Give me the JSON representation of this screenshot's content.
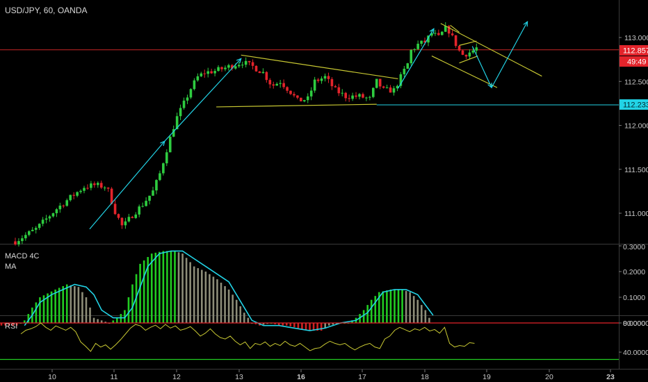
{
  "header": {
    "symbol_label": "USD/JPY, 60, OANDA"
  },
  "colors": {
    "background": "#000000",
    "up": "#2ecc40",
    "down": "#e3242b",
    "cyan": "#22d3e6",
    "yellow": "#c8c832",
    "resistance": "#b22222",
    "axis_text": "#c8c8c8",
    "price_tag": "#e3242b",
    "support_tag": "#22d3e6",
    "macd_green": "#22cc22",
    "macd_grey": "#8c8c78",
    "macd_red": "#cc2222",
    "rsi_line": "#c8c832",
    "rsi_upper": "#e3242b",
    "rsi_lower": "#22cc22"
  },
  "price_tags": {
    "last_price": "112.857",
    "countdown": "49:49",
    "support": "112.233"
  },
  "chart_data": [
    {
      "type": "candlestick",
      "title": "USD/JPY, 60, OANDA",
      "x_ticks": [
        "10",
        "11",
        "12",
        "13",
        "16",
        "17",
        "18",
        "19",
        "20",
        "23"
      ],
      "y_ticks": [
        "111.000",
        "111.500",
        "112.000",
        "112.500",
        "113.000"
      ],
      "ylim": [
        110.6,
        113.3
      ],
      "horizontal_levels": {
        "resistance": 112.86,
        "support": 112.233
      },
      "path": [
        [
          0,
          110.68
        ],
        [
          3,
          110.82
        ],
        [
          6,
          111.05
        ],
        [
          8,
          111.18
        ],
        [
          10,
          111.3
        ],
        [
          11.5,
          111.32
        ],
        [
          13.3,
          111.3
        ],
        [
          14.5,
          111.02
        ],
        [
          15.6,
          110.84
        ],
        [
          17,
          110.98
        ],
        [
          18.5,
          111.1
        ],
        [
          20,
          111.25
        ],
        [
          21,
          111.45
        ],
        [
          22.2,
          111.78
        ],
        [
          23.3,
          112.06
        ],
        [
          24.5,
          112.25
        ],
        [
          25.5,
          112.42
        ],
        [
          26.5,
          112.55
        ],
        [
          27.5,
          112.6
        ],
        [
          29,
          112.62
        ],
        [
          30.3,
          112.65
        ],
        [
          31.5,
          112.68
        ],
        [
          33,
          112.72
        ],
        [
          34.5,
          112.67
        ],
        [
          36,
          112.6
        ],
        [
          37.3,
          112.45
        ],
        [
          38.5,
          112.5
        ],
        [
          40,
          112.38
        ],
        [
          41,
          112.28
        ],
        [
          42.5,
          112.3
        ],
        [
          43.5,
          112.5
        ],
        [
          45,
          112.55
        ],
        [
          46.5,
          112.4
        ],
        [
          48,
          112.33
        ],
        [
          50,
          112.33
        ],
        [
          51.5,
          112.3
        ],
        [
          52.5,
          112.5
        ],
        [
          53.5,
          112.4
        ],
        [
          55,
          112.4
        ],
        [
          56,
          112.55
        ],
        [
          57,
          112.7
        ],
        [
          57.5,
          112.85
        ],
        [
          58.5,
          112.92
        ],
        [
          59.5,
          112.95
        ],
        [
          60.5,
          113.05
        ],
        [
          61.5,
          113.0
        ],
        [
          62.7,
          113.12
        ],
        [
          63.5,
          113.0
        ],
        [
          64.3,
          112.88
        ],
        [
          64.8,
          112.8
        ],
        [
          65.7,
          112.82
        ],
        [
          66.5,
          112.85
        ],
        [
          67,
          112.88
        ]
      ],
      "annotations": {
        "cyan_arrows": [
          [
            [
              10.8,
              110.82
            ],
            [
              21.7,
              111.82
            ]
          ],
          [
            [
              21.7,
              111.82
            ],
            [
              32.8,
              112.76
            ]
          ],
          [
            [
              55.6,
              112.42
            ],
            [
              60.8,
              113.1
            ]
          ],
          [
            [
              66.4,
              112.9
            ],
            [
              69.2,
              112.43
            ]
          ],
          [
            [
              69.2,
              112.43
            ],
            [
              74.4,
              113.18
            ]
          ]
        ],
        "yellow_lines": [
          [
            [
              32.8,
              112.8
            ],
            [
              55.6,
              112.53
            ]
          ],
          [
            [
              29.2,
              112.21
            ],
            [
              52.5,
              112.24
            ]
          ],
          [
            [
              61.8,
              113.16
            ],
            [
              76.5,
              112.56
            ]
          ],
          [
            [
              60.5,
              112.79
            ],
            [
              70.0,
              112.43
            ]
          ],
          [
            [
              64.5,
              112.91
            ],
            [
              67.0,
              112.96
            ]
          ],
          [
            [
              64.5,
              112.71
            ],
            [
              67.2,
              112.79
            ]
          ],
          [
            [
              63.2,
              113.14
            ],
            [
              64.5,
              113.06
            ]
          ]
        ]
      }
    },
    {
      "type": "bar",
      "title": "MACD 4C",
      "subtitle": "MA",
      "y_ticks": [
        "0.3000",
        "0.2000",
        "0.1000",
        "0.0000"
      ],
      "ylim": [
        -0.04,
        0.3
      ],
      "series_points": [
        [
          0,
          -0.01
        ],
        [
          2,
          -0.01
        ],
        [
          3,
          0.01
        ],
        [
          4,
          0.06
        ],
        [
          5,
          0.1
        ],
        [
          7,
          0.13
        ],
        [
          8.5,
          0.15
        ],
        [
          10,
          0.14
        ],
        [
          11,
          0.1
        ],
        [
          11.5,
          0.06
        ],
        [
          12,
          0.02
        ],
        [
          14,
          0.0
        ],
        [
          15,
          0.02
        ],
        [
          16,
          0.05
        ],
        [
          17,
          0.15
        ],
        [
          18,
          0.23
        ],
        [
          19.5,
          0.27
        ],
        [
          21,
          0.28
        ],
        [
          22.5,
          0.28
        ],
        [
          23.5,
          0.27
        ],
        [
          25,
          0.22
        ],
        [
          26.5,
          0.2
        ],
        [
          28,
          0.17
        ],
        [
          29.5,
          0.13
        ],
        [
          30.5,
          0.09
        ],
        [
          31.5,
          0.04
        ],
        [
          32.5,
          0.0
        ],
        [
          33.5,
          -0.01
        ],
        [
          35,
          0.0
        ],
        [
          36,
          -0.01
        ],
        [
          37,
          -0.01
        ],
        [
          38.5,
          -0.02
        ],
        [
          40,
          -0.03
        ],
        [
          41.5,
          -0.03
        ],
        [
          42.5,
          -0.01
        ],
        [
          44,
          0.0
        ],
        [
          45,
          0.0
        ],
        [
          46,
          0.02
        ],
        [
          47,
          0.05
        ],
        [
          48,
          0.09
        ],
        [
          49,
          0.12
        ],
        [
          50.5,
          0.13
        ],
        [
          52,
          0.13
        ],
        [
          53,
          0.12
        ],
        [
          54,
          0.09
        ],
        [
          55,
          0.05
        ],
        [
          55.5,
          0.02
        ]
      ],
      "signal_points": [
        [
          3,
          -0.01
        ],
        [
          4,
          0.03
        ],
        [
          5,
          0.08
        ],
        [
          6.5,
          0.11
        ],
        [
          8,
          0.13
        ],
        [
          9.5,
          0.15
        ],
        [
          11,
          0.14
        ],
        [
          12,
          0.11
        ],
        [
          13,
          0.05
        ],
        [
          14.5,
          0.02
        ],
        [
          16,
          0.02
        ],
        [
          17,
          0.06
        ],
        [
          18,
          0.14
        ],
        [
          19,
          0.22
        ],
        [
          20.5,
          0.27
        ],
        [
          22,
          0.28
        ],
        [
          23.5,
          0.28
        ],
        [
          25,
          0.25
        ],
        [
          26.5,
          0.22
        ],
        [
          28,
          0.19
        ],
        [
          29.5,
          0.16
        ],
        [
          30.5,
          0.11
        ],
        [
          31.5,
          0.06
        ],
        [
          32.5,
          0.01
        ],
        [
          34,
          -0.01
        ],
        [
          36,
          -0.01
        ],
        [
          38,
          -0.02
        ],
        [
          40,
          -0.03
        ],
        [
          42,
          -0.02
        ],
        [
          44,
          0.0
        ],
        [
          46,
          0.01
        ],
        [
          47.5,
          0.04
        ],
        [
          48.5,
          0.08
        ],
        [
          49.5,
          0.12
        ],
        [
          51,
          0.13
        ],
        [
          52.5,
          0.13
        ],
        [
          54,
          0.11
        ],
        [
          55,
          0.07
        ],
        [
          56,
          0.03
        ]
      ]
    },
    {
      "type": "line",
      "title": "RSI",
      "y_ticks": [
        "80.0000",
        "40.0000"
      ],
      "ylim": [
        25,
        84
      ],
      "upper_band": 80,
      "lower_band": 30,
      "points": [
        [
          0,
          65
        ],
        [
          1,
          70
        ],
        [
          2,
          72
        ],
        [
          3,
          75
        ],
        [
          4,
          80
        ],
        [
          5,
          74
        ],
        [
          6,
          70
        ],
        [
          7,
          76
        ],
        [
          8,
          73
        ],
        [
          9,
          70
        ],
        [
          10,
          74
        ],
        [
          11,
          68
        ],
        [
          12,
          54
        ],
        [
          13,
          48
        ],
        [
          14,
          41
        ],
        [
          15,
          52
        ],
        [
          16,
          47
        ],
        [
          17,
          50
        ],
        [
          18,
          44
        ],
        [
          19,
          50
        ],
        [
          20,
          57
        ],
        [
          21,
          65
        ],
        [
          22,
          73
        ],
        [
          23,
          78
        ],
        [
          24,
          76
        ],
        [
          25,
          70
        ],
        [
          26,
          74
        ],
        [
          27,
          77
        ],
        [
          28,
          72
        ],
        [
          29,
          78
        ],
        [
          30,
          73
        ],
        [
          31,
          76
        ],
        [
          32,
          70
        ],
        [
          33,
          72
        ],
        [
          34,
          75
        ],
        [
          35,
          69
        ],
        [
          36,
          62
        ],
        [
          37,
          66
        ],
        [
          38,
          72
        ],
        [
          39,
          65
        ],
        [
          40,
          60
        ],
        [
          41,
          58
        ],
        [
          42,
          62
        ],
        [
          43,
          55
        ],
        [
          44,
          50
        ],
        [
          45,
          54
        ],
        [
          46,
          45
        ],
        [
          47,
          52
        ],
        [
          48,
          50
        ],
        [
          49,
          54
        ],
        [
          50,
          48
        ],
        [
          51,
          52
        ],
        [
          52,
          49
        ],
        [
          53,
          55
        ],
        [
          54,
          50
        ],
        [
          55,
          48
        ],
        [
          56,
          52
        ],
        [
          57,
          47
        ],
        [
          58,
          42
        ],
        [
          59,
          45
        ],
        [
          60,
          46
        ],
        [
          61,
          51
        ],
        [
          62,
          55
        ],
        [
          63,
          52
        ],
        [
          64,
          50
        ],
        [
          65,
          52
        ],
        [
          66,
          47
        ],
        [
          67,
          43
        ],
        [
          68,
          47
        ],
        [
          69,
          50
        ],
        [
          70,
          52
        ],
        [
          71,
          47
        ],
        [
          72,
          45
        ],
        [
          73,
          58
        ],
        [
          74,
          62
        ],
        [
          75,
          70
        ],
        [
          76,
          74
        ],
        [
          77,
          71
        ],
        [
          78,
          68
        ],
        [
          79,
          72
        ],
        [
          80,
          70
        ],
        [
          81,
          74
        ],
        [
          82,
          69
        ],
        [
          83,
          71
        ],
        [
          84,
          66
        ],
        [
          85,
          74
        ],
        [
          86,
          52
        ],
        [
          87,
          47
        ],
        [
          88,
          49
        ],
        [
          89,
          48
        ],
        [
          90,
          53
        ],
        [
          91,
          52
        ]
      ]
    }
  ]
}
